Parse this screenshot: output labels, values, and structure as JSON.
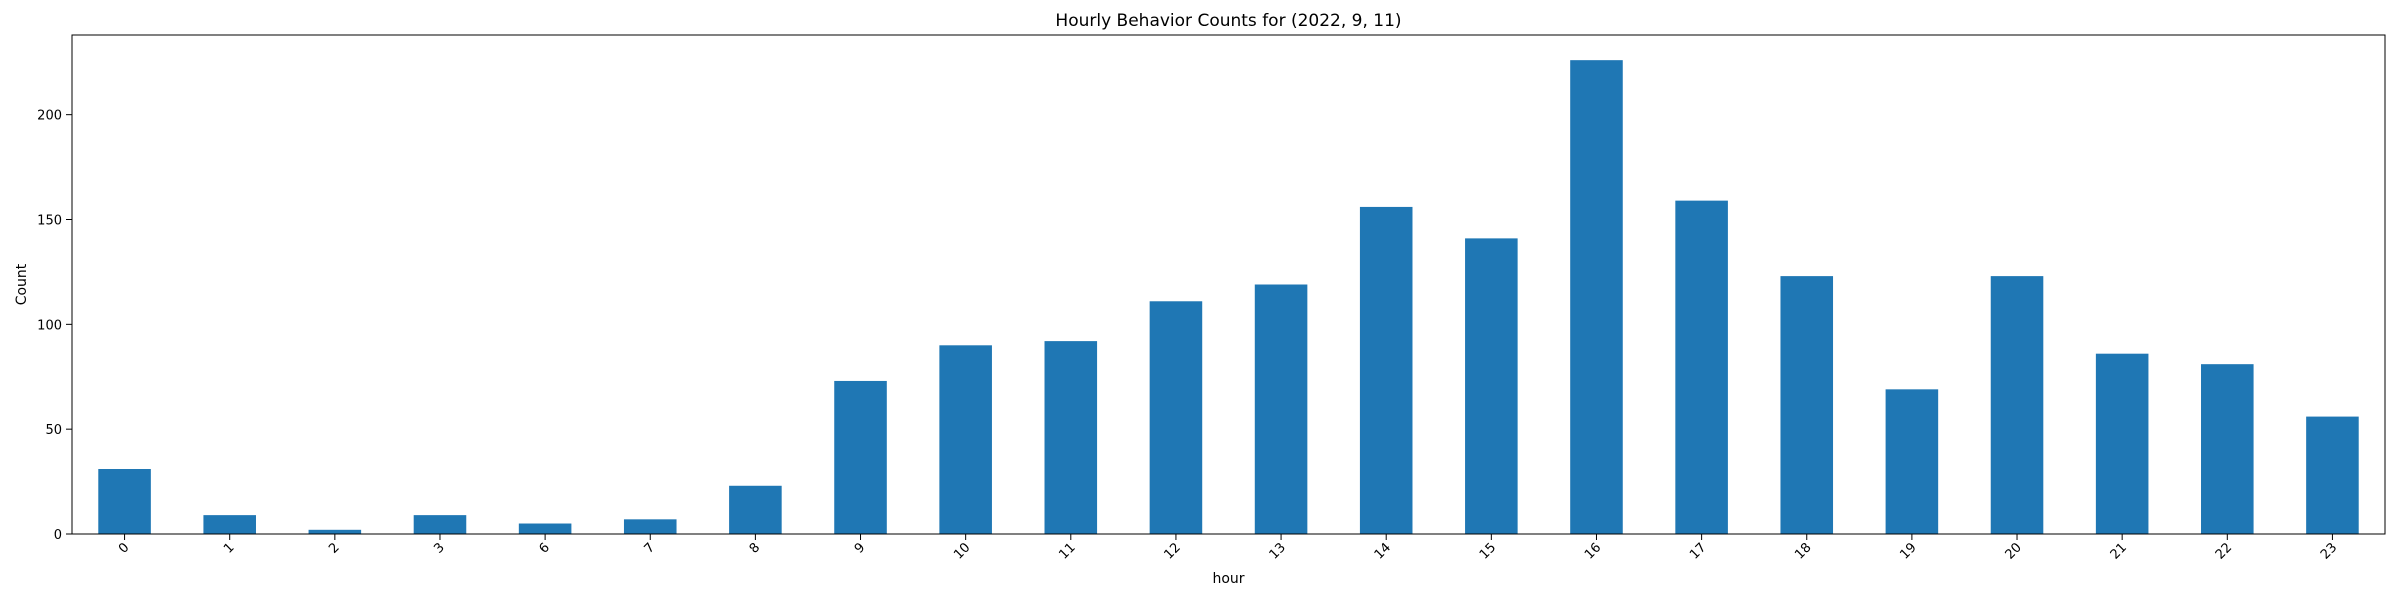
{
  "chart_data": {
    "type": "bar",
    "title": "Hourly Behavior Counts for (2022, 9, 11)",
    "xlabel": "hour",
    "ylabel": "Count",
    "categories": [
      "0",
      "1",
      "2",
      "3",
      "6",
      "7",
      "8",
      "9",
      "10",
      "11",
      "12",
      "13",
      "14",
      "15",
      "16",
      "17",
      "18",
      "19",
      "20",
      "21",
      "22",
      "23"
    ],
    "values": [
      31,
      9,
      2,
      9,
      5,
      7,
      23,
      73,
      90,
      92,
      111,
      119,
      156,
      141,
      226,
      159,
      123,
      69,
      123,
      86,
      81,
      56
    ],
    "ylim": [
      0,
      238
    ],
    "yticks": [
      0,
      50,
      100,
      150,
      200
    ],
    "bar_color": "#1f77b4",
    "grid": false,
    "legend": false
  }
}
